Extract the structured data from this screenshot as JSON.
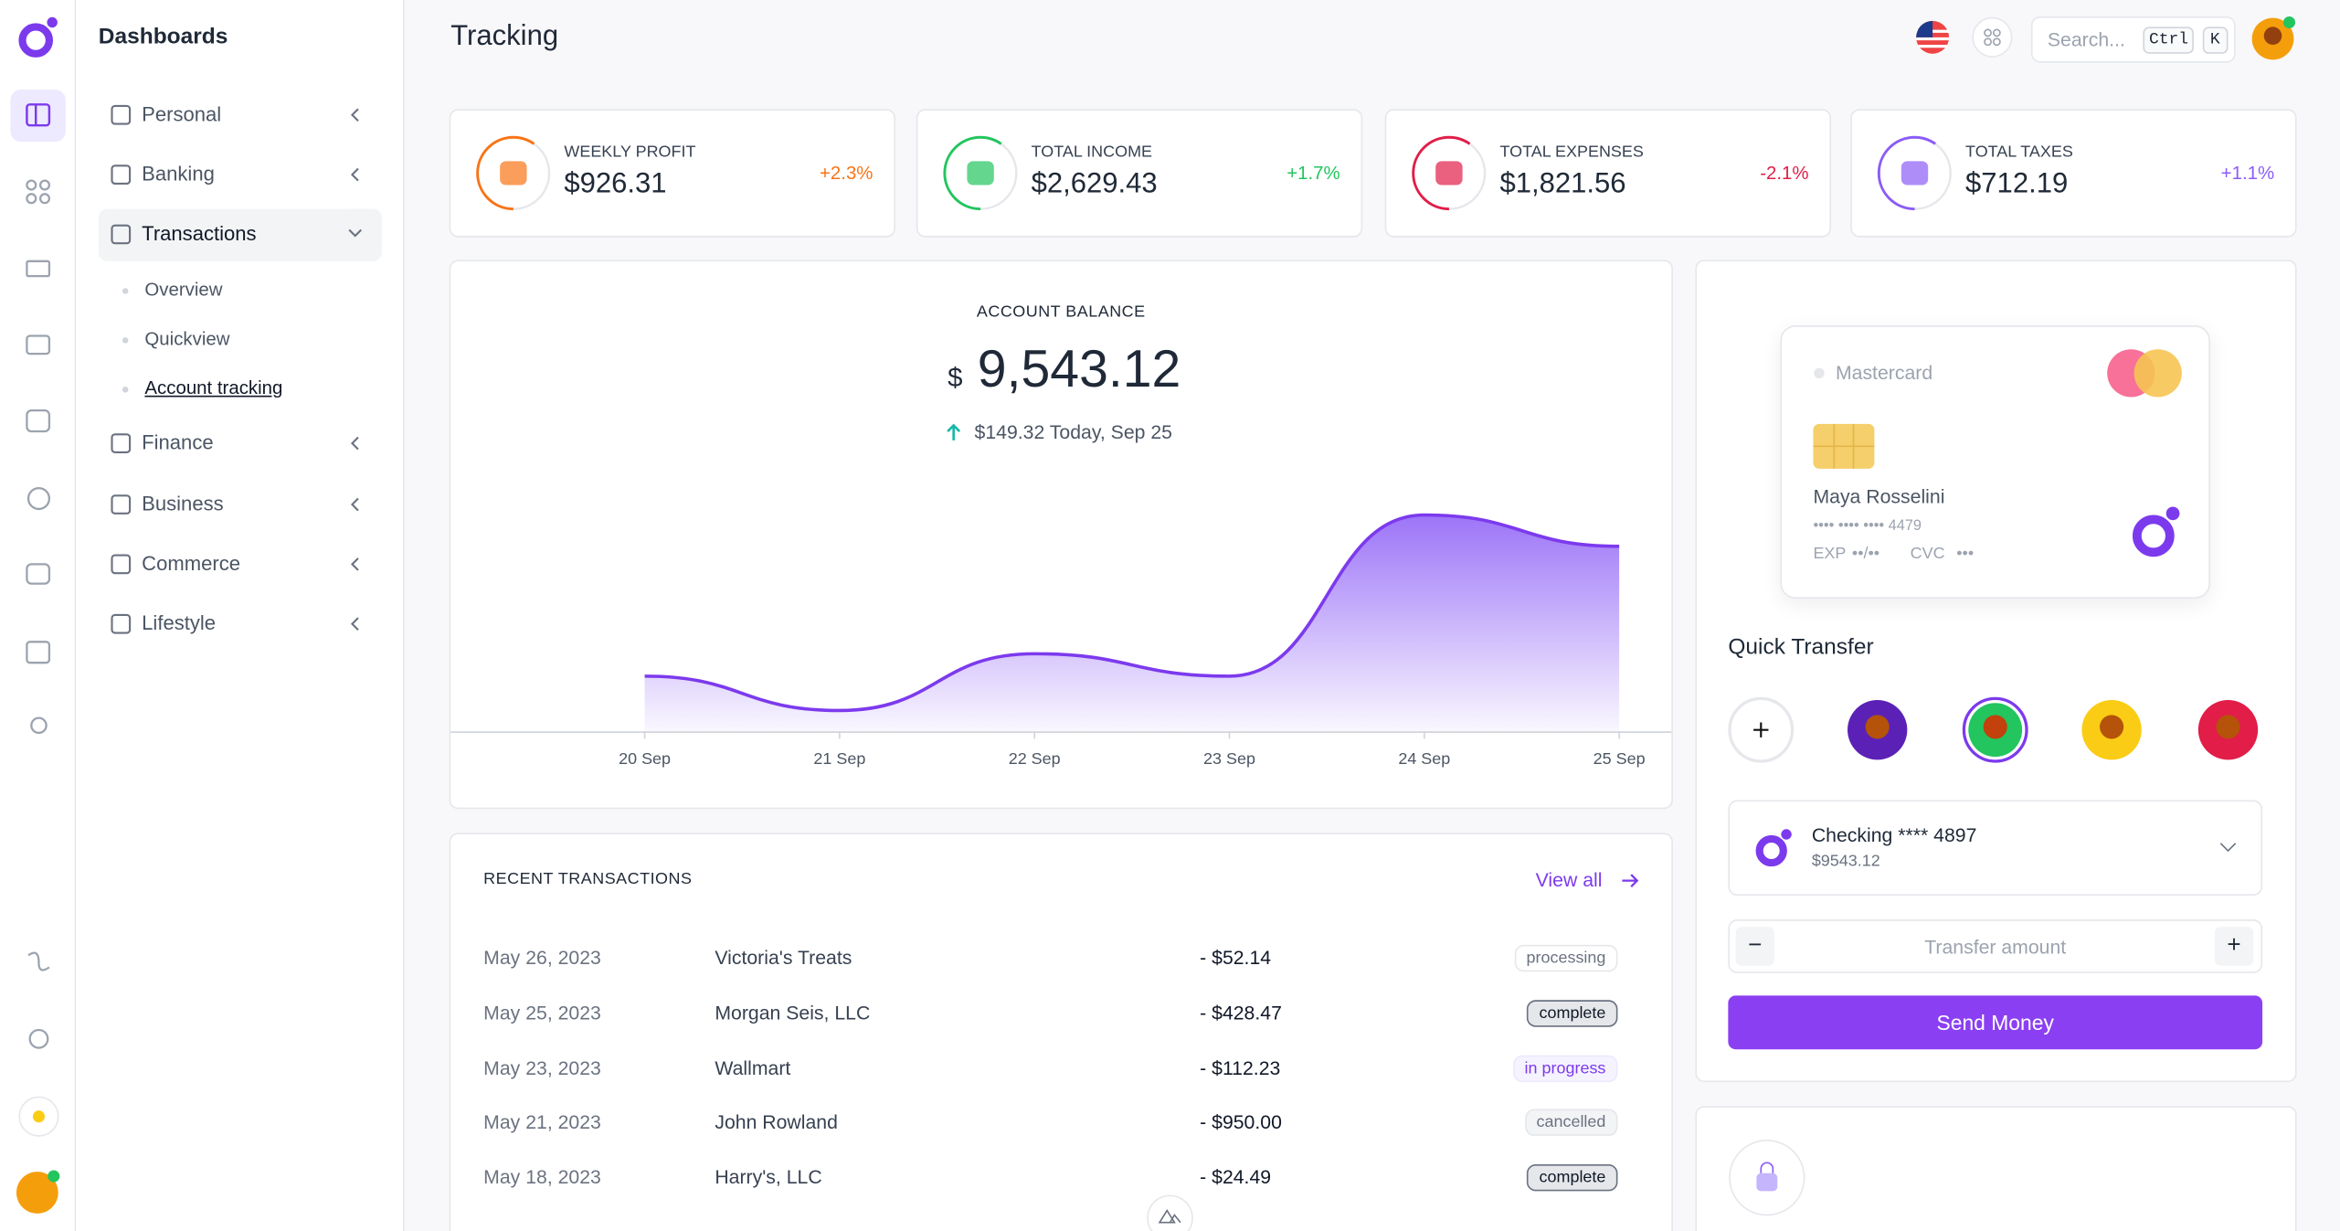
{
  "sidebar": {
    "section": "Dashboards",
    "nav": [
      "Personal",
      "Banking",
      "Transactions",
      "Finance",
      "Business",
      "Commerce",
      "Lifestyle"
    ],
    "subnav": [
      "Overview",
      "Quickview",
      "Account tracking"
    ]
  },
  "header": {
    "title": "Tracking",
    "search": "Search...",
    "kbd": [
      "Ctrl",
      "K"
    ]
  },
  "stats": [
    {
      "label": "WEEKLY PROFIT",
      "value": "$926.31",
      "change": "+2.3%",
      "color": "#f97316"
    },
    {
      "label": "TOTAL INCOME",
      "value": "$2,629.43",
      "change": "+1.7%",
      "color": "#22c55e"
    },
    {
      "label": "TOTAL EXPENSES",
      "value": "$1,821.56",
      "change": "-2.1%",
      "color": "#e11d48"
    },
    {
      "label": "TOTAL TAXES",
      "value": "$712.19",
      "change": "+1.1%",
      "color": "#8b5cf6"
    }
  ],
  "chart_data": {
    "type": "area",
    "title": "ACCOUNT BALANCE",
    "currency": "$",
    "value": "9,543.12",
    "change": "$149.32 Today, Sep 25",
    "categories": [
      "20 Sep",
      "21 Sep",
      "22 Sep",
      "23 Sep",
      "24 Sep",
      "25 Sep"
    ],
    "values": [
      37,
      14,
      52,
      37,
      145,
      124
    ],
    "ylim": [
      0,
      180
    ],
    "color": "#7c3aed"
  },
  "card": {
    "brand": "Mastercard",
    "holder": "Maya Rosselini",
    "number": "•••• •••• •••• 4479",
    "exp_label": "EXP",
    "exp": "••/••",
    "cvc_label": "CVC",
    "cvc": "•••"
  },
  "quick_transfer": {
    "title": "Quick Transfer",
    "account": "Checking **** 4897",
    "balance": "$9543.12",
    "amount_placeholder": "Transfer amount",
    "button": "Send Money"
  },
  "transactions": {
    "title": "RECENT TRANSACTIONS",
    "link": "View all",
    "rows": [
      [
        "May 26, 2023",
        "Victoria's Treats",
        "- $52.14",
        "processing"
      ],
      [
        "May 25, 2023",
        "Morgan Seis, LLC",
        "- $428.47",
        "complete"
      ],
      [
        "May 23, 2023",
        "Wallmart",
        "- $112.23",
        "in progress"
      ],
      [
        "May 21, 2023",
        "John Rowland",
        "- $950.00",
        "cancelled"
      ],
      [
        "May 18, 2023",
        "Harry's, LLC",
        "- $24.49",
        "complete"
      ]
    ]
  }
}
